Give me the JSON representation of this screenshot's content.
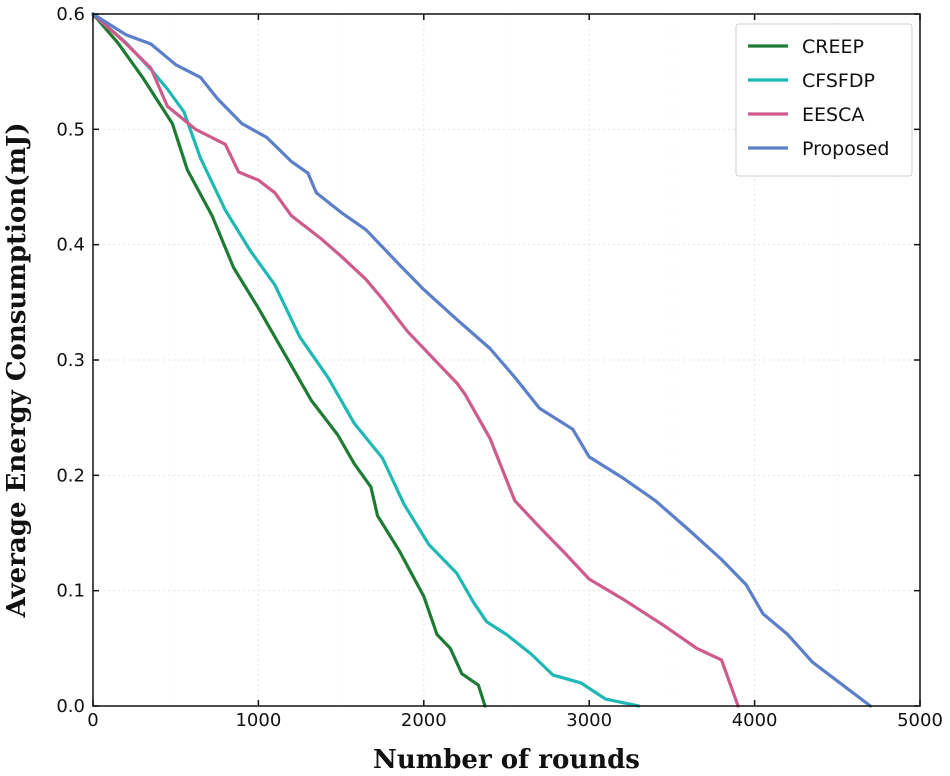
{
  "chart_data": {
    "type": "line",
    "title": "",
    "xlabel": "Number of rounds",
    "ylabel": "Average Energy Consumption(mJ)",
    "xlim": [
      0,
      5000
    ],
    "ylim": [
      0,
      0.6
    ],
    "xticks": [
      "0",
      "1000",
      "2000",
      "3000",
      "4000",
      "5000"
    ],
    "yticks": [
      "0.0",
      "0.1",
      "0.2",
      "0.3",
      "0.4",
      "0.5",
      "0.6"
    ],
    "grid": true,
    "legend_position": "top-right",
    "series": [
      {
        "name": "CREEP",
        "color": "#1e7b34",
        "points": [
          [
            0,
            0.6
          ],
          [
            150,
            0.575
          ],
          [
            300,
            0.545
          ],
          [
            480,
            0.505
          ],
          [
            570,
            0.465
          ],
          [
            720,
            0.425
          ],
          [
            850,
            0.38
          ],
          [
            1000,
            0.345
          ],
          [
            1100,
            0.32
          ],
          [
            1200,
            0.295
          ],
          [
            1320,
            0.265
          ],
          [
            1480,
            0.235
          ],
          [
            1580,
            0.21
          ],
          [
            1680,
            0.19
          ],
          [
            1720,
            0.165
          ],
          [
            1850,
            0.135
          ],
          [
            2000,
            0.095
          ],
          [
            2080,
            0.062
          ],
          [
            2160,
            0.05
          ],
          [
            2230,
            0.028
          ],
          [
            2330,
            0.018
          ],
          [
            2370,
            0.0
          ]
        ]
      },
      {
        "name": "CFSFDP",
        "color": "#1fb8b4",
        "points": [
          [
            0,
            0.6
          ],
          [
            200,
            0.575
          ],
          [
            350,
            0.552
          ],
          [
            450,
            0.535
          ],
          [
            550,
            0.515
          ],
          [
            650,
            0.475
          ],
          [
            800,
            0.43
          ],
          [
            950,
            0.395
          ],
          [
            1100,
            0.365
          ],
          [
            1250,
            0.32
          ],
          [
            1420,
            0.285
          ],
          [
            1580,
            0.245
          ],
          [
            1750,
            0.215
          ],
          [
            1880,
            0.175
          ],
          [
            2030,
            0.14
          ],
          [
            2200,
            0.115
          ],
          [
            2300,
            0.09
          ],
          [
            2380,
            0.073
          ],
          [
            2500,
            0.062
          ],
          [
            2650,
            0.045
          ],
          [
            2780,
            0.027
          ],
          [
            2950,
            0.02
          ],
          [
            3100,
            0.006
          ],
          [
            3300,
            0.0
          ]
        ]
      },
      {
        "name": "EESCA",
        "color": "#cf5b8d",
        "points": [
          [
            0,
            0.6
          ],
          [
            180,
            0.577
          ],
          [
            350,
            0.553
          ],
          [
            450,
            0.52
          ],
          [
            620,
            0.5
          ],
          [
            800,
            0.487
          ],
          [
            880,
            0.463
          ],
          [
            1000,
            0.456
          ],
          [
            1100,
            0.445
          ],
          [
            1200,
            0.425
          ],
          [
            1380,
            0.405
          ],
          [
            1500,
            0.39
          ],
          [
            1650,
            0.37
          ],
          [
            1750,
            0.353
          ],
          [
            1900,
            0.325
          ],
          [
            2100,
            0.295
          ],
          [
            2200,
            0.28
          ],
          [
            2250,
            0.27
          ],
          [
            2400,
            0.232
          ],
          [
            2550,
            0.178
          ],
          [
            2700,
            0.155
          ],
          [
            2850,
            0.133
          ],
          [
            3000,
            0.11
          ],
          [
            3200,
            0.093
          ],
          [
            3450,
            0.07
          ],
          [
            3650,
            0.05
          ],
          [
            3800,
            0.04
          ],
          [
            3900,
            0.0
          ]
        ]
      },
      {
        "name": "Proposed",
        "color": "#5b7fc9",
        "points": [
          [
            0,
            0.6
          ],
          [
            200,
            0.582
          ],
          [
            350,
            0.574
          ],
          [
            500,
            0.556
          ],
          [
            650,
            0.545
          ],
          [
            750,
            0.527
          ],
          [
            900,
            0.505
          ],
          [
            1050,
            0.493
          ],
          [
            1200,
            0.472
          ],
          [
            1300,
            0.462
          ],
          [
            1350,
            0.445
          ],
          [
            1500,
            0.428
          ],
          [
            1650,
            0.413
          ],
          [
            1850,
            0.383
          ],
          [
            2000,
            0.361
          ],
          [
            2200,
            0.335
          ],
          [
            2400,
            0.31
          ],
          [
            2550,
            0.285
          ],
          [
            2700,
            0.258
          ],
          [
            2900,
            0.24
          ],
          [
            3000,
            0.216
          ],
          [
            3200,
            0.198
          ],
          [
            3400,
            0.178
          ],
          [
            3600,
            0.153
          ],
          [
            3800,
            0.127
          ],
          [
            3950,
            0.105
          ],
          [
            4050,
            0.08
          ],
          [
            4200,
            0.062
          ],
          [
            4350,
            0.038
          ],
          [
            4700,
            0.0
          ]
        ]
      }
    ]
  }
}
